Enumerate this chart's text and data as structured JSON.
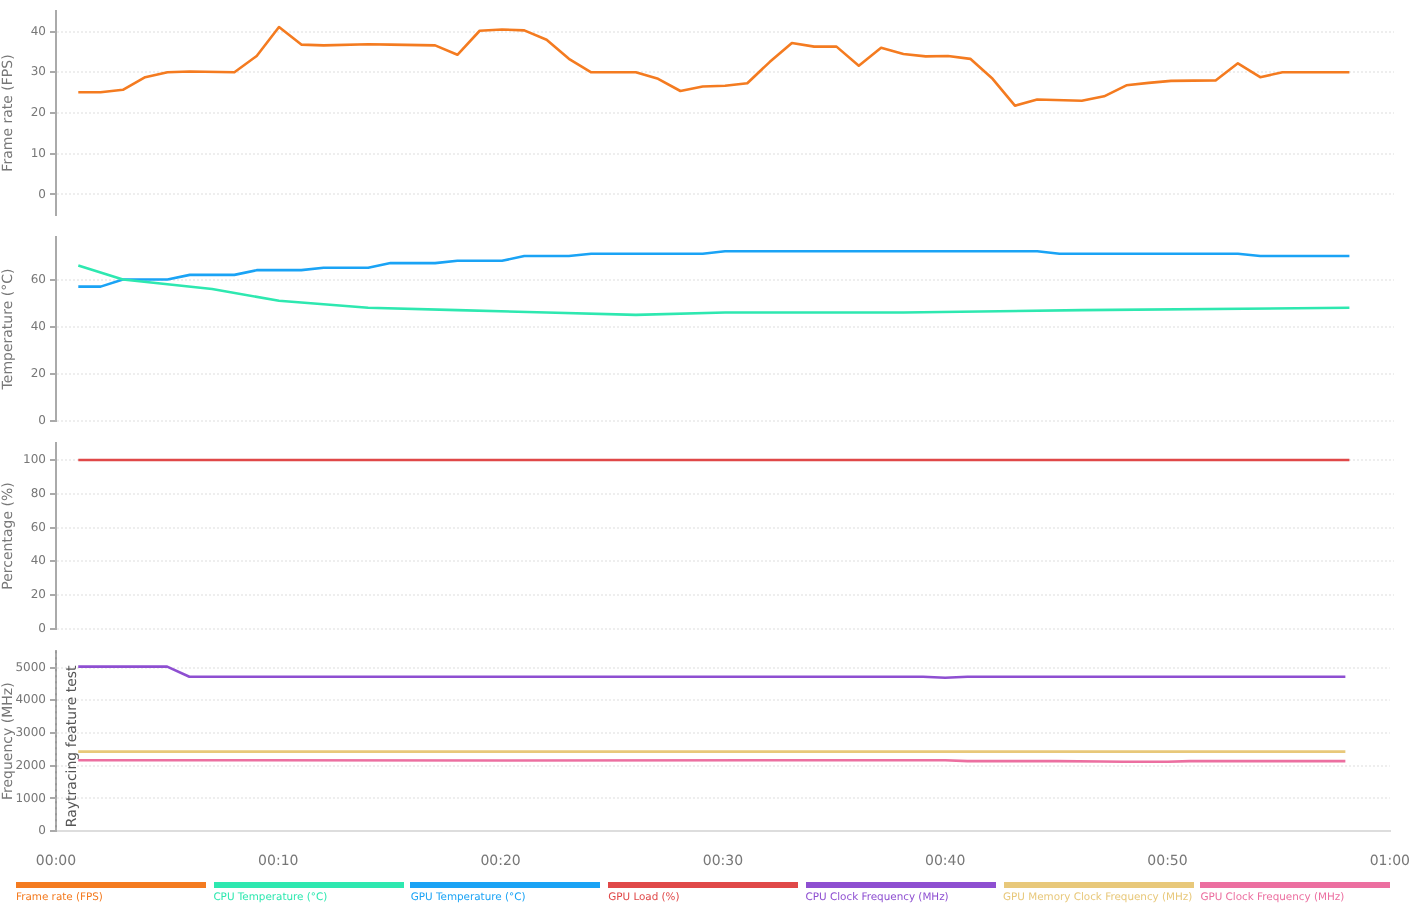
{
  "chart_data": [
    {
      "type": "line",
      "ylabel": "Frame rate (FPS)",
      "xlim": [
        0,
        60
      ],
      "ylim": [
        -5,
        45
      ],
      "yticks": [
        0,
        10,
        20,
        30,
        40
      ],
      "grid": "y",
      "tick_labels": "y",
      "legend": "bottom",
      "marker": "none",
      "series": [
        {
          "name": "Frame rate (FPS)",
          "color": "#f47b20",
          "x": [
            1,
            2,
            3,
            4,
            5,
            6,
            8,
            9,
            10,
            11,
            12,
            14,
            15,
            17,
            18,
            19,
            20,
            21,
            22,
            23,
            24,
            26,
            27,
            28,
            29,
            30,
            31,
            32,
            33,
            34,
            35,
            36,
            37,
            38,
            39,
            40,
            41,
            42,
            43,
            44,
            46,
            47,
            48,
            49,
            50,
            52,
            53,
            54,
            55,
            57,
            58
          ],
          "values": [
            25.1,
            25.1,
            25.7,
            28.8,
            30.0,
            30.2,
            30.0,
            34.0,
            41.1,
            36.8,
            36.6,
            36.9,
            36.8,
            36.6,
            34.3,
            40.2,
            40.5,
            40.3,
            38.0,
            33.3,
            30.0,
            30.0,
            28.4,
            25.4,
            26.5,
            26.7,
            27.3,
            32.5,
            37.2,
            36.3,
            36.3,
            31.6,
            36.0,
            34.5,
            33.9,
            34.0,
            33.3,
            28.4,
            21.8,
            23.3,
            23.0,
            24.1,
            26.8,
            27.4,
            27.9,
            28.0,
            32.2,
            28.8,
            30.0,
            30.0,
            30.0
          ]
        }
      ]
    },
    {
      "type": "line",
      "ylabel": "Temperature (°C)",
      "xlim": [
        0,
        60
      ],
      "ylim": [
        0,
        78
      ],
      "yticks": [
        0,
        20,
        40,
        60
      ],
      "grid": "y",
      "tick_labels": "y",
      "legend": "bottom",
      "marker": "none",
      "series": [
        {
          "name": "CPU Temperature (°C)",
          "color": "#2ee8b0",
          "x": [
            1,
            3,
            5,
            7,
            10,
            14,
            18,
            22,
            26,
            30,
            38,
            46,
            58
          ],
          "values": [
            66,
            60,
            58,
            56,
            51,
            48,
            47,
            46,
            45,
            46,
            46,
            47,
            48
          ]
        },
        {
          "name": "GPU Temperature (°C)",
          "color": "#1aa3f5",
          "x": [
            1,
            2,
            3,
            5,
            6,
            8,
            9,
            11,
            12,
            14,
            15,
            17,
            18,
            20,
            21,
            23,
            24,
            29,
            30,
            44,
            45,
            53,
            54,
            58
          ],
          "values": [
            57,
            57,
            60,
            60,
            62,
            62,
            64,
            64,
            65,
            65,
            67,
            67,
            68,
            68,
            70,
            70,
            71,
            71,
            72,
            72,
            71,
            71,
            70,
            70
          ]
        }
      ]
    },
    {
      "type": "line",
      "ylabel": "Percentage (%)",
      "xlim": [
        0,
        60
      ],
      "ylim": [
        0,
        110
      ],
      "yticks": [
        0,
        20,
        40,
        60,
        80,
        100
      ],
      "grid": "y",
      "tick_labels": "y",
      "legend": "bottom",
      "marker": "none",
      "series": [
        {
          "name": "GPU Load (%)",
          "color": "#e04848",
          "x": [
            1,
            58
          ],
          "values": [
            100,
            100
          ]
        }
      ]
    },
    {
      "type": "line",
      "ylabel": "Frequency (MHz)",
      "xlim": [
        0,
        60
      ],
      "xticks": [
        {
          "value": 0,
          "label": "00:00"
        },
        {
          "value": 10,
          "label": "00:10"
        },
        {
          "value": 20,
          "label": "00:20"
        },
        {
          "value": 30,
          "label": "00:30"
        },
        {
          "value": 40,
          "label": "00:40"
        },
        {
          "value": 50,
          "label": "00:50"
        },
        {
          "value": 60,
          "label": "01:00"
        }
      ],
      "ylim": [
        0,
        5500
      ],
      "yticks": [
        0,
        1000,
        2000,
        3000,
        4000,
        5000
      ],
      "grid": "y",
      "legend": "bottom",
      "marker": "none",
      "ref_lines": [
        {
          "axis": "x",
          "value": 0,
          "label": "Raytracing feature test",
          "color": "#999999",
          "line_style": "dotted"
        }
      ],
      "series": [
        {
          "name": "CPU Clock Frequency (MHz)",
          "color": "#8e4fd1",
          "x": [
            1,
            5,
            6,
            38,
            39,
            40,
            41,
            58
          ],
          "values": [
            5030,
            5030,
            4720,
            4720,
            4720,
            4690,
            4720,
            4720
          ]
        },
        {
          "name": "GPU Memory Clock Frequency (MHz)",
          "color": "#e8c87a",
          "x": [
            1,
            58
          ],
          "values": [
            2430,
            2430
          ]
        },
        {
          "name": "GPU Clock Frequency (MHz)",
          "color": "#ec6fa0",
          "x": [
            1,
            20,
            38,
            40,
            41,
            44,
            45,
            47,
            48,
            50,
            51,
            58
          ],
          "values": [
            2170,
            2160,
            2170,
            2170,
            2140,
            2140,
            2140,
            2130,
            2120,
            2120,
            2140,
            2140
          ]
        }
      ]
    }
  ]
}
